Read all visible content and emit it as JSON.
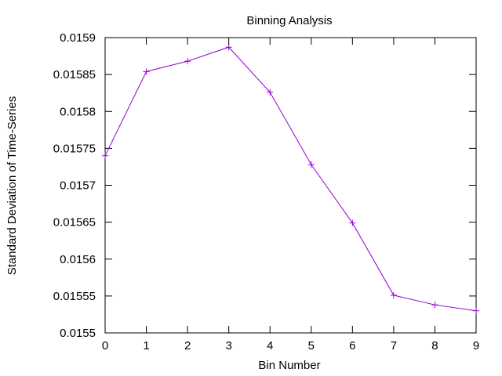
{
  "chart_data": {
    "type": "line",
    "title": "Binning Analysis",
    "xlabel": "Bin Number",
    "ylabel": "Standard Deviation of Time-Series",
    "xlim": [
      0,
      9
    ],
    "ylim": [
      0.0155,
      0.0159
    ],
    "x_ticks": [
      "0",
      "1",
      "2",
      "3",
      "4",
      "5",
      "6",
      "7",
      "8",
      "9"
    ],
    "y_ticks": [
      "0.0155",
      "0.01555",
      "0.0156",
      "0.01565",
      "0.0157",
      "0.01575",
      "0.0158",
      "0.01585",
      "0.0159"
    ],
    "grid": false,
    "legend": "none",
    "marker": "plus",
    "series": [
      {
        "color": "#9400d3",
        "x": [
          0,
          1,
          2,
          3,
          4,
          5,
          6,
          7,
          8,
          9
        ],
        "y": [
          0.01574,
          0.015854,
          0.015868,
          0.015887,
          0.015826,
          0.015728,
          0.015649,
          0.015551,
          0.015538,
          0.01553
        ]
      }
    ]
  }
}
